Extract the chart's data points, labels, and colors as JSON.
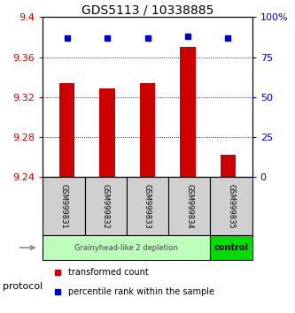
{
  "title": "GDS5113 / 10338885",
  "samples": [
    "GSM999831",
    "GSM999832",
    "GSM999833",
    "GSM999834",
    "GSM999835"
  ],
  "red_values": [
    9.334,
    9.329,
    9.334,
    9.37,
    9.262
  ],
  "blue_values": [
    87,
    87,
    87,
    88,
    87
  ],
  "ylim_left": [
    9.24,
    9.4
  ],
  "ylim_right": [
    0,
    100
  ],
  "yticks_left": [
    9.24,
    9.28,
    9.32,
    9.36,
    9.4
  ],
  "ytick_labels_left": [
    "9.24",
    "9.28",
    "9.32",
    "9.36",
    "9.4"
  ],
  "yticks_right": [
    0,
    25,
    50,
    75,
    100
  ],
  "ytick_labels_right": [
    "0",
    "25",
    "50",
    "75",
    "100%"
  ],
  "bar_color": "#cc0000",
  "dot_color": "#0000cc",
  "bar_baseline": 9.24,
  "group1_label": "Grainyhead-like 2 depletion",
  "group1_color": "#bbffbb",
  "group1_count": 4,
  "group2_label": "control",
  "group2_color": "#00dd00",
  "group2_count": 1,
  "protocol_label": "protocol",
  "legend_red": "transformed count",
  "legend_blue": "percentile rank within the sample",
  "background_color": "#ffffff",
  "plot_bg": "#ffffff",
  "tick_label_color_left": "#cc0000",
  "tick_label_color_right": "#0000cc",
  "sample_box_color": "#d0d0d0"
}
